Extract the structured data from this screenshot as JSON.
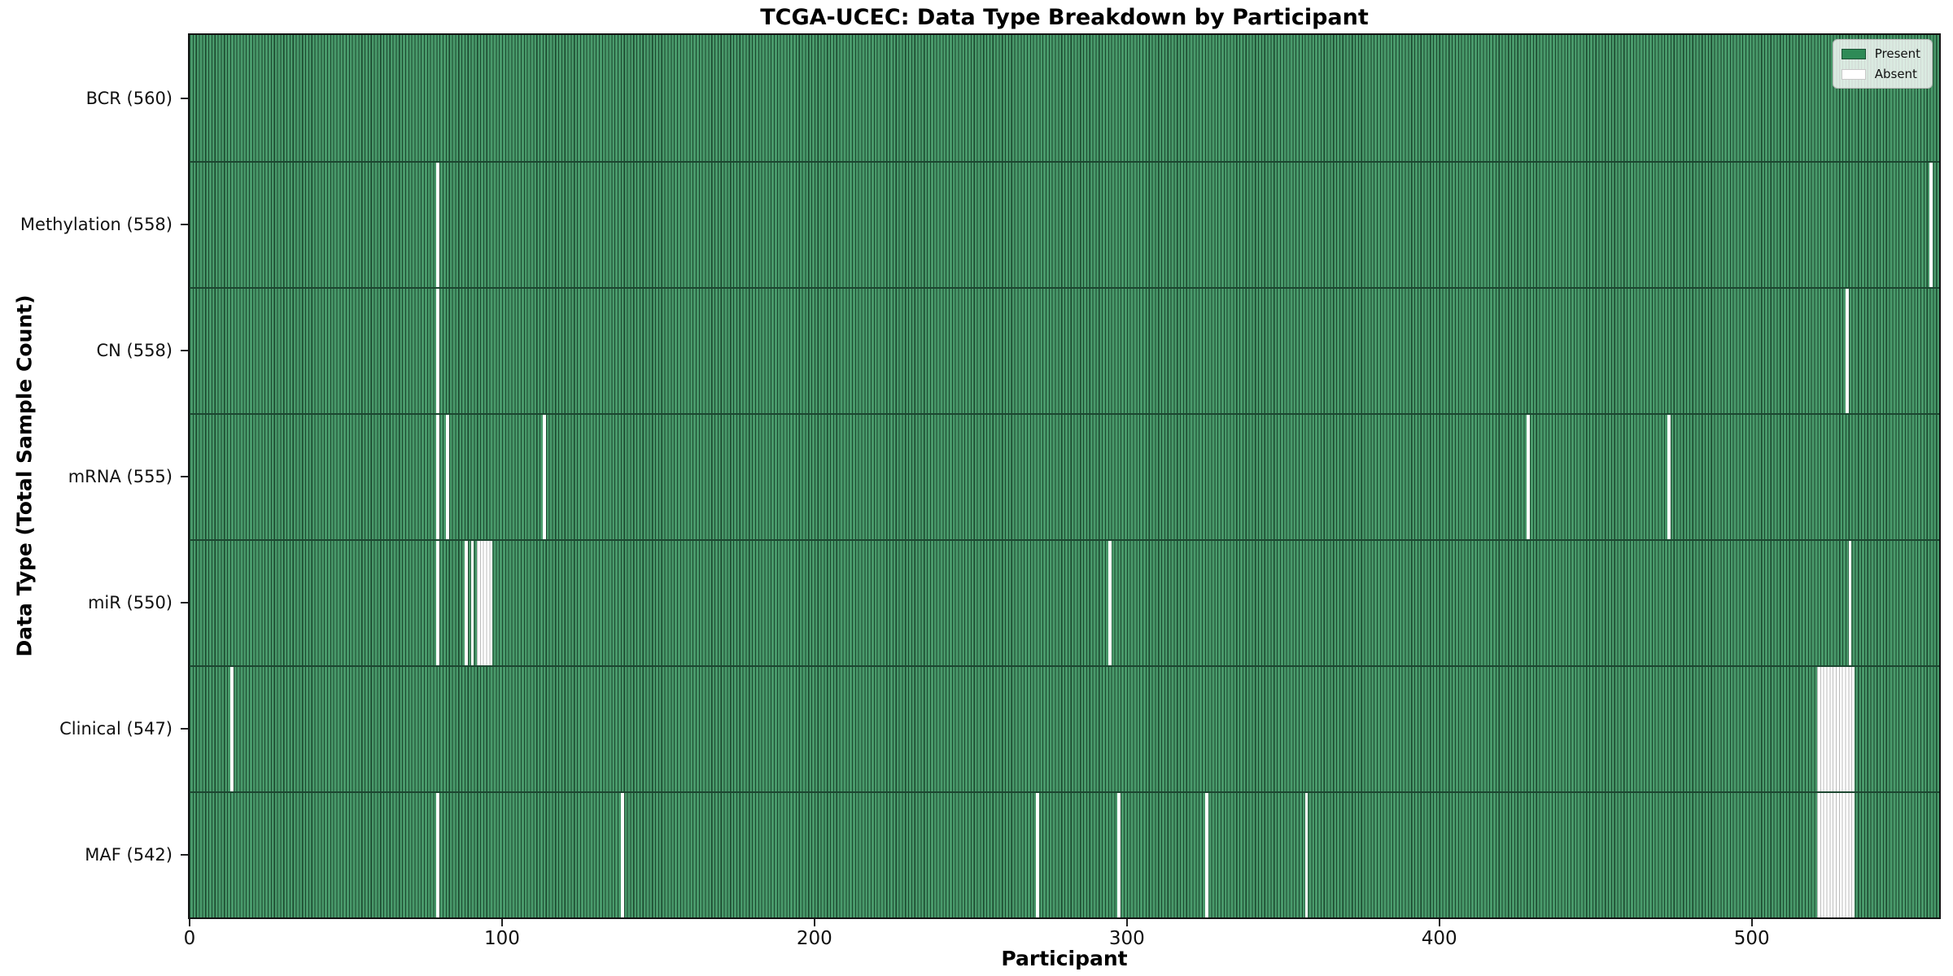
{
  "chart_data": {
    "type": "heatmap",
    "title": "TCGA-UCEC: Data Type Breakdown by Participant",
    "xlabel": "Participant",
    "ylabel": "Data Type (Total Sample Count)",
    "x_range": [
      0,
      560
    ],
    "x_ticks": [
      0,
      100,
      200,
      300,
      400,
      500
    ],
    "grid": false,
    "legend": {
      "position": "upper right",
      "entries": [
        {
          "label": "Present",
          "color": "#2e8b57"
        },
        {
          "label": "Absent",
          "color": "#ffffff"
        }
      ]
    },
    "colors": {
      "present_fill": "#2e8b57",
      "absent_fill": "#ffffff",
      "bar_edge": "#1c4630"
    },
    "rows": [
      {
        "label": "BCR (560)",
        "data_type": "BCR",
        "total": 560,
        "absent_participants": []
      },
      {
        "label": "Methylation (558)",
        "data_type": "Methylation",
        "total": 558,
        "absent_participants": [
          79,
          557
        ]
      },
      {
        "label": "CN (558)",
        "data_type": "CN",
        "total": 558,
        "absent_participants": [
          79,
          530
        ]
      },
      {
        "label": "mRNA (555)",
        "data_type": "mRNA",
        "total": 555,
        "absent_participants": [
          79,
          82,
          113,
          428,
          473
        ]
      },
      {
        "label": "miR (550)",
        "data_type": "miR",
        "total": 550,
        "absent_participants": [
          79,
          88,
          90,
          92,
          93,
          94,
          95,
          96,
          294,
          531
        ]
      },
      {
        "label": "Clinical (547)",
        "data_type": "Clinical",
        "total": 547,
        "absent_participants": [
          13,
          521,
          522,
          523,
          524,
          525,
          526,
          527,
          528,
          529,
          530,
          531,
          532
        ]
      },
      {
        "label": "MAF (542)",
        "data_type": "MAF",
        "total": 542,
        "absent_participants": [
          79,
          138,
          271,
          297,
          325,
          357,
          521,
          522,
          523,
          524,
          525,
          526,
          527,
          528,
          529,
          530,
          531,
          532
        ]
      }
    ]
  }
}
